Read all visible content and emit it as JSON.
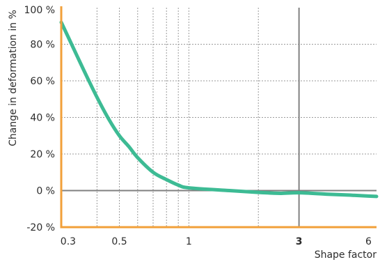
{
  "chart_data": {
    "type": "line",
    "xlabel": "Shape factor",
    "ylabel": "Change in deformation in %",
    "x_scale": "log",
    "xlim": [
      0.28,
      6.5
    ],
    "ylim": [
      -20,
      100
    ],
    "grid": true,
    "x_ticks": [
      {
        "value": 0.3,
        "label": "0.3",
        "emphasis": false
      },
      {
        "value": 0.5,
        "label": "0.5",
        "emphasis": false
      },
      {
        "value": 1,
        "label": "1",
        "emphasis": false
      },
      {
        "value": 3,
        "label": "3",
        "emphasis": true
      },
      {
        "value": 6,
        "label": "6",
        "emphasis": false
      }
    ],
    "x_gridlines": [
      0.4,
      0.5,
      0.6,
      0.7,
      0.8,
      0.9,
      1,
      2,
      3
    ],
    "y_ticks": [
      {
        "value": -20,
        "label": "-20 %"
      },
      {
        "value": 0,
        "label": "0 %"
      },
      {
        "value": 20,
        "label": "20 %"
      },
      {
        "value": 40,
        "label": "40 %"
      },
      {
        "value": 60,
        "label": "60 %"
      },
      {
        "value": 80,
        "label": "80 %"
      },
      {
        "value": 100,
        "label": "100 %"
      }
    ],
    "reference_lines": {
      "x": 3,
      "y": 0
    },
    "series": [
      {
        "x": [
          0.28,
          0.3,
          0.35,
          0.4,
          0.45,
          0.5,
          0.55,
          0.6,
          0.7,
          0.8,
          0.9,
          1.0,
          1.5,
          2.0,
          2.5,
          3.0,
          4.0,
          5.0,
          6.0,
          6.5
        ],
        "values": [
          92,
          84,
          66,
          51,
          39,
          30,
          24,
          18,
          10,
          6,
          3,
          1.5,
          0,
          -1,
          -1.5,
          -1.2,
          -2,
          -2.5,
          -3,
          -3.2
        ],
        "color": "#3dbb94"
      }
    ],
    "colors": {
      "curve": "#3dbb94",
      "frame": "#f2a03a",
      "reference": "#808080",
      "grid": "#9a9a9a",
      "text": "#2b2b2b"
    }
  }
}
